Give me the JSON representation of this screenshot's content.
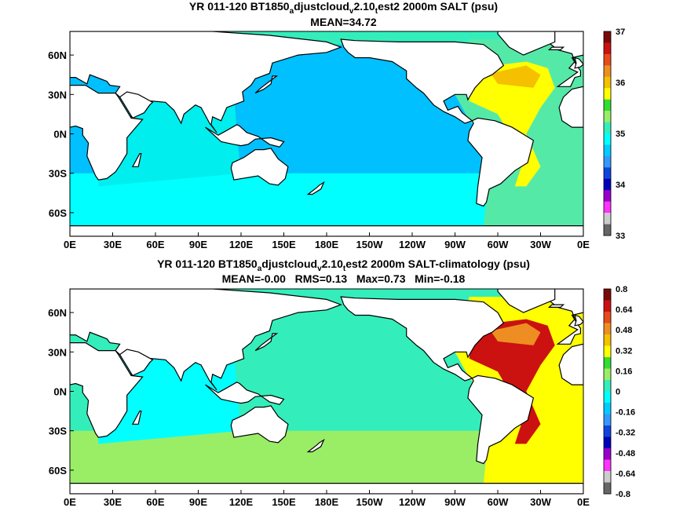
{
  "panels": [
    {
      "title_parts": [
        "YR 011-120 BT1850",
        "a",
        "djustcloud",
        "v",
        "2.10",
        "t",
        "est2 2000m SALT (psu)"
      ],
      "stats": "MEAN=34.72",
      "x_ticks": [
        "0E",
        "30E",
        "60E",
        "90E",
        "120E",
        "150E",
        "180E",
        "150W",
        "120W",
        "90W",
        "60W",
        "30W",
        "0E"
      ],
      "y_ticks": [
        "60N",
        "30N",
        "0N",
        "30S",
        "60S"
      ],
      "colorbar": {
        "labels": [
          "37",
          "36",
          "35",
          "34",
          "33"
        ],
        "colors": [
          "#7a0a0a",
          "#cc1111",
          "#e84a1a",
          "#ee8e22",
          "#f5c000",
          "#ffff00",
          "#33dd33",
          "#99ee66",
          "#33eebb",
          "#00ffff",
          "#00ccff",
          "#3399ff",
          "#1144dd",
          "#0000bb",
          "#9900cc",
          "#ff33ff",
          "#cccccc",
          "#666666"
        ]
      },
      "map_colors": {
        "base": "#00c0ff",
        "atlantic_low": "#55e9a8",
        "atlantic_high": "#ffff00",
        "atlantic_mid": "#f5c000",
        "indian": "#00eeee",
        "southern": "#00ffff",
        "arctic": "#33eebb",
        "land": "#ffffff"
      }
    },
    {
      "title_parts": [
        "YR 011-120 BT1850",
        "a",
        "djustcloud",
        "v",
        "2.10",
        "t",
        "est2 2000m SALT-climatology (psu)"
      ],
      "stats": "MEAN=-0.00   RMS=0.13   Max=0.73   Min=-0.18",
      "x_ticks": [
        "0E",
        "30E",
        "60E",
        "90E",
        "120E",
        "150E",
        "180E",
        "150W",
        "120W",
        "90W",
        "60W",
        "30W",
        "0E"
      ],
      "y_ticks": [
        "60N",
        "30N",
        "0N",
        "30S",
        "60S"
      ],
      "colorbar": {
        "labels": [
          "0.8",
          "0.64",
          "0.48",
          "0.32",
          "0.16",
          "0",
          "-0.16",
          "-0.32",
          "-0.48",
          "-0.64",
          "-0.8"
        ],
        "colors": [
          "#7a0a0a",
          "#cc1111",
          "#e84a1a",
          "#ee8e22",
          "#f5c000",
          "#ffff00",
          "#33dd33",
          "#99ee66",
          "#33eebb",
          "#00ffff",
          "#00ccff",
          "#3399ff",
          "#1144dd",
          "#0000bb",
          "#9900cc",
          "#ff33ff",
          "#cccccc",
          "#666666"
        ]
      },
      "map_colors": {
        "base": "#33eebb",
        "atlantic_low": "#ffff00",
        "atlantic_high": "#cc1111",
        "atlantic_mid": "#ee8e22",
        "indian": "#00ffff",
        "southern": "#99ee66",
        "arctic": "#33eebb",
        "land": "#ffffff"
      }
    }
  ]
}
